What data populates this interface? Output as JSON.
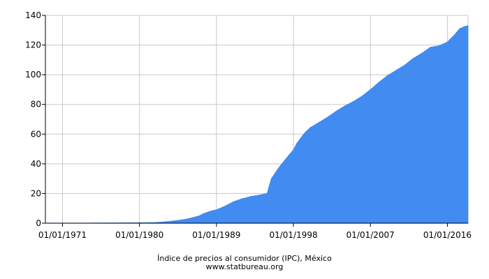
{
  "chart_data": {
    "type": "area",
    "title": "Índice de precios al consumidor (IPC), México",
    "source": "www.statbureau.org",
    "xlabel": "",
    "ylabel": "",
    "xlim": [
      "1969-01-01",
      "2018-06-01"
    ],
    "ylim": [
      0,
      140
    ],
    "x_ticks": [
      "01/01/1971",
      "01/01/1980",
      "01/01/1989",
      "01/01/1998",
      "01/01/2007",
      "01/01/2016"
    ],
    "y_ticks": [
      0,
      20,
      40,
      60,
      80,
      100,
      120,
      140
    ],
    "grid": true,
    "legend": "none",
    "colors": {
      "fill": "#428bf0",
      "grid": "#c8c8c8",
      "axis": "#000000"
    },
    "series": [
      {
        "x": [
          "1969-01-01",
          "1971-01-01",
          "1975-01-01",
          "1980-01-01",
          "1982-01-01",
          "1983-01-01",
          "1984-01-01",
          "1985-01-01",
          "1986-01-01",
          "1987-01-01",
          "1987-07-01",
          "1988-01-01",
          "1988-06-01",
          "1989-01-01",
          "1990-01-01",
          "1991-01-01",
          "1992-01-01",
          "1993-01-01",
          "1994-01-01",
          "1994-12-01",
          "1995-03-01",
          "1995-06-01",
          "1996-01-01",
          "1996-06-01",
          "1997-01-01",
          "1997-06-01",
          "1998-01-01",
          "1998-06-01",
          "1999-01-01",
          "1999-06-01",
          "2000-01-01",
          "2001-01-01",
          "2002-01-01",
          "2003-01-01",
          "2004-01-01",
          "2005-01-01",
          "2006-01-01",
          "2007-01-01",
          "2008-01-01",
          "2009-01-01",
          "2010-01-01",
          "2011-01-01",
          "2012-01-01",
          "2013-01-01",
          "2014-01-01",
          "2015-01-01",
          "2016-01-01",
          "2017-01-01",
          "2017-06-01",
          "2018-01-01",
          "2018-06-01"
        ],
        "values": [
          0.1,
          0.1,
          0.15,
          0.3,
          0.5,
          1.0,
          1.6,
          2.3,
          3.5,
          5.0,
          6.5,
          7.5,
          8.3,
          9.0,
          11.5,
          14.5,
          16.5,
          18.0,
          19.0,
          20.0,
          25.0,
          30.0,
          35.0,
          38.5,
          42.5,
          45.5,
          49.5,
          54.0,
          58.5,
          61.5,
          64.5,
          68.0,
          71.5,
          75.5,
          79.0,
          82.0,
          85.5,
          90.0,
          95.0,
          99.5,
          103.0,
          106.5,
          111.0,
          114.5,
          118.5,
          119.5,
          122.0,
          128.0,
          131.0,
          132.5,
          133.0
        ]
      }
    ]
  }
}
